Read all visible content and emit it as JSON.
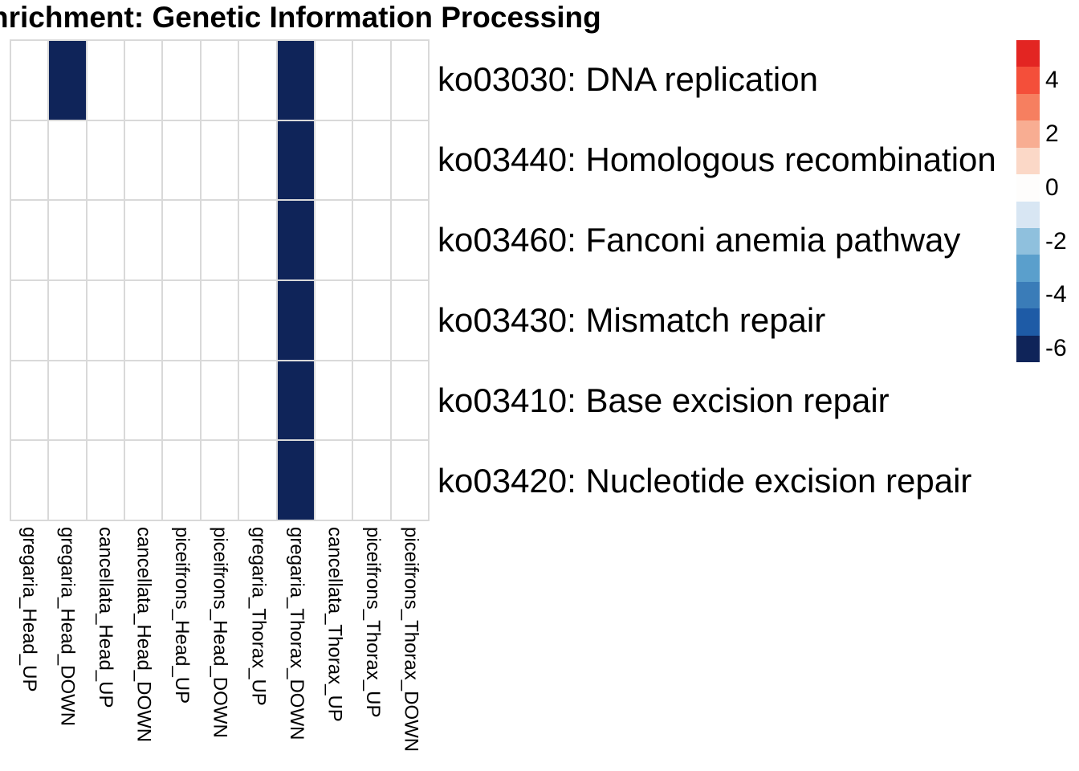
{
  "title": "nrichment: Genetic Information Processing",
  "chart_data": {
    "type": "heatmap",
    "title": "nrichment: Genetic Information Processing",
    "columns": [
      "gregaria_Head_UP",
      "gregaria_Head_DOWN",
      "cancellata_Head_UP",
      "cancellata_Head_DOWN",
      "piceifrons_Head_UP",
      "piceifrons_Head_DOWN",
      "gregaria_Thorax_UP",
      "gregaria_Thorax_DOWN",
      "cancellata_Thorax_UP",
      "piceifrons_Thorax_UP",
      "piceifrons_Thorax_DOWN"
    ],
    "rows": [
      "ko03030: DNA replication",
      "ko03440: Homologous recombination",
      "ko03460: Fanconi anemia pathway",
      "ko03430: Mismatch repair",
      "ko03410: Base excision repair",
      "ko03420: Nucleotide excision repair"
    ],
    "cells": [
      [
        null,
        -6,
        null,
        null,
        null,
        null,
        null,
        -6,
        null,
        null,
        null
      ],
      [
        null,
        null,
        null,
        null,
        null,
        null,
        null,
        -6,
        null,
        null,
        null
      ],
      [
        null,
        null,
        null,
        null,
        null,
        null,
        null,
        -6,
        null,
        null,
        null
      ],
      [
        null,
        null,
        null,
        null,
        null,
        null,
        null,
        -6,
        null,
        null,
        null
      ],
      [
        null,
        null,
        null,
        null,
        null,
        null,
        null,
        -6,
        null,
        null,
        null
      ],
      [
        null,
        null,
        null,
        null,
        null,
        null,
        null,
        -6,
        null,
        null,
        null
      ]
    ],
    "na_color": "#ffffff",
    "grid_line_color": "#d9d9d9",
    "legend": {
      "position": "right",
      "ticks": [
        4,
        2,
        0,
        -2,
        -4,
        -6
      ],
      "bins": [
        {
          "value": 5,
          "color": "#e32522"
        },
        {
          "value": 4,
          "color": "#f44f3a"
        },
        {
          "value": 3,
          "color": "#f67f60"
        },
        {
          "value": 2,
          "color": "#f8ad92"
        },
        {
          "value": 1,
          "color": "#fbd8c7"
        },
        {
          "value": 0,
          "color": "#fefdfc"
        },
        {
          "value": -1,
          "color": "#d8e6f3"
        },
        {
          "value": -2,
          "color": "#8fc0dd"
        },
        {
          "value": -3,
          "color": "#5a9fcc"
        },
        {
          "value": -4,
          "color": "#3a7cb8"
        },
        {
          "value": -5,
          "color": "#1e5ba6"
        },
        {
          "value": -6,
          "color": "#0f2459"
        }
      ]
    }
  }
}
